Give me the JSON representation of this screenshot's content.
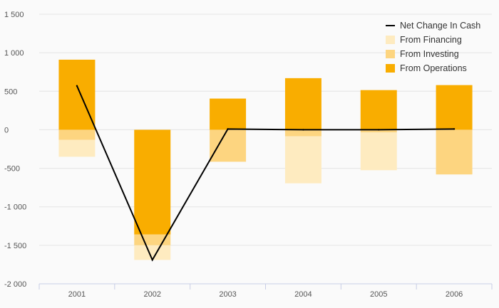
{
  "chart_data": {
    "type": "bar",
    "stacked": true,
    "categories": [
      "2001",
      "2002",
      "2003",
      "2004",
      "2005",
      "2006"
    ],
    "series": [
      {
        "name": "From Operations",
        "kind": "bar",
        "color": "#f9ad00",
        "values": [
          910,
          -1360,
          405,
          670,
          515,
          580
        ]
      },
      {
        "name": "From Investing",
        "kind": "bar",
        "color": "#fdd580",
        "values": [
          -130,
          -140,
          -415,
          -85,
          -35,
          -580
        ]
      },
      {
        "name": "From Financing",
        "kind": "bar",
        "color": "#feebc0",
        "values": [
          -220,
          -190,
          0,
          -610,
          -490,
          0
        ]
      },
      {
        "name": "Net Change In Cash",
        "kind": "line",
        "color": "#000000",
        "values": [
          570,
          -1690,
          10,
          0,
          0,
          10
        ]
      }
    ],
    "ylim": [
      -2000,
      1500
    ],
    "yticks": [
      -2000,
      -1500,
      -1000,
      -500,
      0,
      500,
      1000,
      1500
    ],
    "ytick_labels": [
      "-2 000",
      "-1 500",
      "-1 000",
      "-500",
      "0",
      "500",
      "1 000",
      "1 500"
    ],
    "legend": {
      "placement": "top-right",
      "entries": [
        "Net Change In Cash",
        "From Financing",
        "From Investing",
        "From Operations"
      ]
    },
    "grid": true,
    "title": "",
    "xlabel": "",
    "ylabel": ""
  }
}
